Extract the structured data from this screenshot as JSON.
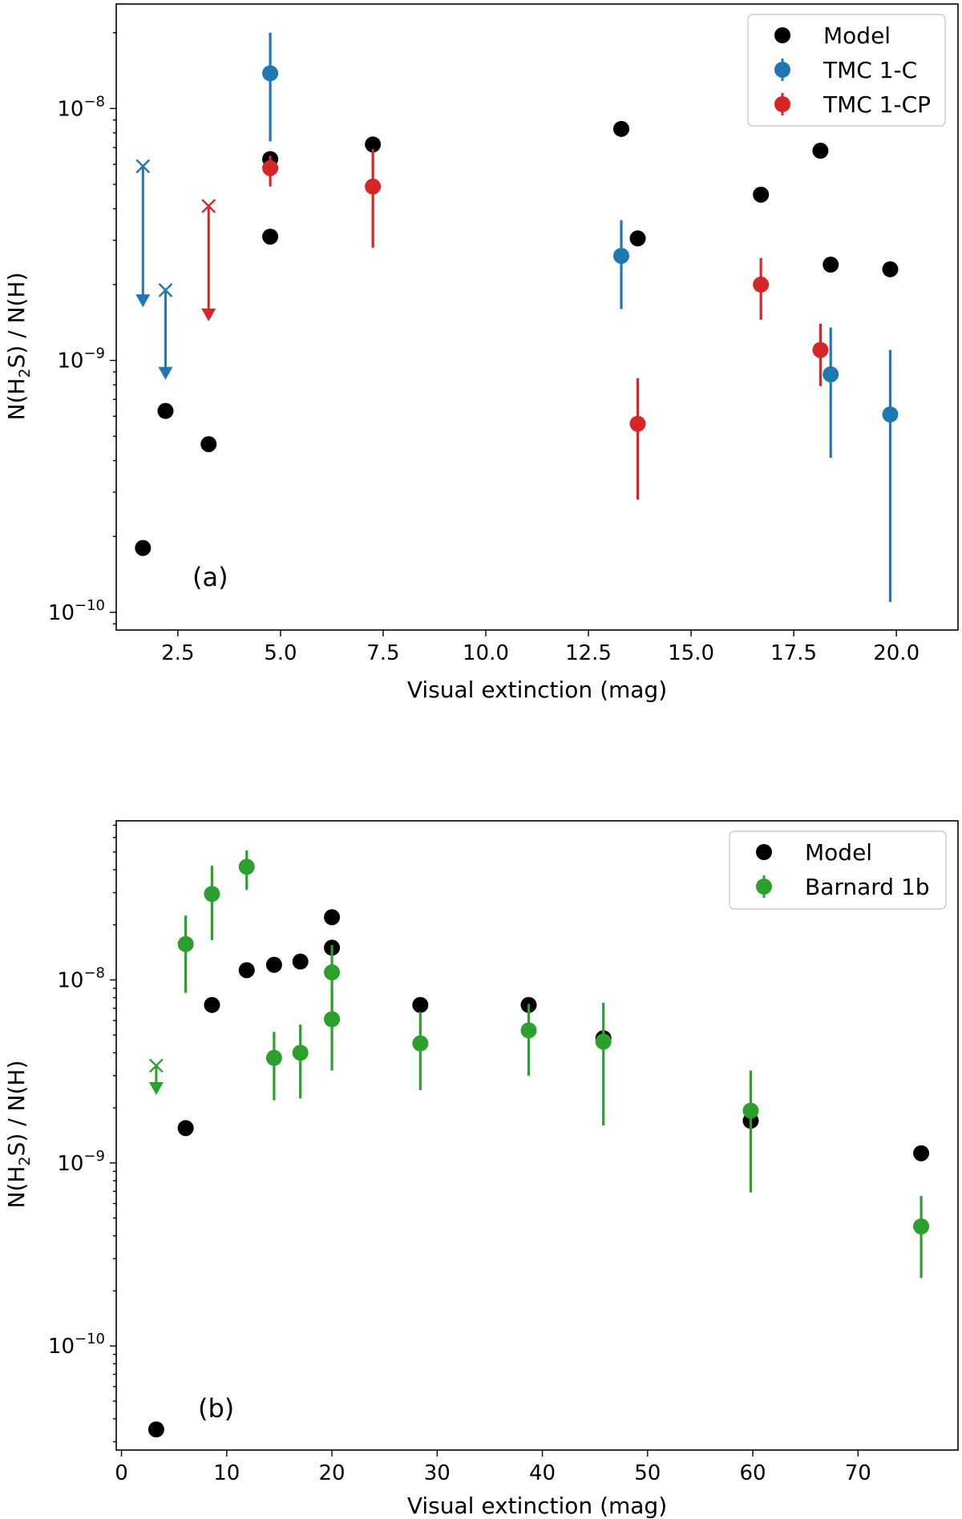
{
  "chart_data": [
    {
      "type": "scatter",
      "panel_label": "(a)",
      "xlabel": "Visual extinction (mag)",
      "ylabel": "N(H2S) / N(H)",
      "ylabel_parts": {
        "pre": "N(H",
        "sub": "2",
        "post": "S) / N(H)"
      },
      "yscale": "log",
      "xlim": [
        1.0,
        21.5
      ],
      "ylim": [
        8.5e-11,
        2.6e-08
      ],
      "xticks": [
        2.5,
        5.0,
        7.5,
        10.0,
        12.5,
        15.0,
        17.5,
        20.0
      ],
      "xtick_labels": [
        "2.5",
        "5.0",
        "7.5",
        "10.0",
        "12.5",
        "15.0",
        "17.5",
        "20.0"
      ],
      "yticks": [
        {
          "value": 1e-10,
          "base": "10",
          "exp": "−10"
        },
        {
          "value": 1e-09,
          "base": "10",
          "exp": "−9"
        },
        {
          "value": 1e-08,
          "base": "10",
          "exp": "−8"
        }
      ],
      "legend": {
        "location": "top-right",
        "entries": [
          {
            "label": "Model",
            "color": "#000000",
            "errorbar": false
          },
          {
            "label": "TMC 1-C",
            "color": "#1f77b4",
            "errorbar": true
          },
          {
            "label": "TMC 1-CP",
            "color": "#d62728",
            "errorbar": true
          }
        ]
      },
      "series": [
        {
          "name": "Model",
          "color": "#000000",
          "points": [
            {
              "x": 1.65,
              "y": 1.8e-10
            },
            {
              "x": 2.2,
              "y": 6.3e-10
            },
            {
              "x": 3.25,
              "y": 4.65e-10
            },
            {
              "x": 4.75,
              "y": 6.3e-09
            },
            {
              "x": 4.75,
              "y": 3.1e-09
            },
            {
              "x": 7.25,
              "y": 7.2e-09
            },
            {
              "x": 13.3,
              "y": 8.3e-09
            },
            {
              "x": 13.7,
              "y": 3.05e-09
            },
            {
              "x": 16.7,
              "y": 4.55e-09
            },
            {
              "x": 18.15,
              "y": 6.8e-09
            },
            {
              "x": 18.4,
              "y": 2.4e-09
            },
            {
              "x": 19.85,
              "y": 2.3e-09
            }
          ]
        },
        {
          "name": "TMC 1-C",
          "color": "#1f77b4",
          "points": [
            {
              "x": 4.75,
              "y": 1.38e-08,
              "lo": 7.4e-09,
              "hi": 2e-08
            },
            {
              "x": 13.3,
              "y": 2.6e-09,
              "lo": 1.6e-09,
              "hi": 3.6e-09
            },
            {
              "x": 18.4,
              "y": 8.8e-10,
              "lo": 4.1e-10,
              "hi": 1.35e-09
            },
            {
              "x": 19.85,
              "y": 6.1e-10,
              "lo": 1.1e-10,
              "hi": 1.1e-09
            }
          ],
          "upper_limits": [
            {
              "x": 1.65,
              "y": 5.9e-09,
              "to": 1.65e-09
            },
            {
              "x": 2.2,
              "y": 1.9e-09,
              "to": 8.5e-10
            }
          ]
        },
        {
          "name": "TMC 1-CP",
          "color": "#d62728",
          "points": [
            {
              "x": 4.75,
              "y": 5.8e-09,
              "lo": 4.9e-09,
              "hi": 6.5e-09
            },
            {
              "x": 7.25,
              "y": 4.9e-09,
              "lo": 2.8e-09,
              "hi": 6.9e-09
            },
            {
              "x": 13.7,
              "y": 5.6e-10,
              "lo": 2.8e-10,
              "hi": 8.5e-10
            },
            {
              "x": 16.7,
              "y": 2e-09,
              "lo": 1.45e-09,
              "hi": 2.55e-09
            },
            {
              "x": 18.15,
              "y": 1.1e-09,
              "lo": 7.9e-10,
              "hi": 1.4e-09
            }
          ],
          "upper_limits": [
            {
              "x": 3.25,
              "y": 4.1e-09,
              "to": 1.45e-09
            }
          ]
        }
      ]
    },
    {
      "type": "scatter",
      "panel_label": "(b)",
      "xlabel": "Visual extinction (mag)",
      "ylabel": "N(H2S) / N(H)",
      "ylabel_parts": {
        "pre": "N(H",
        "sub": "2",
        "post": "S) / N(H)"
      },
      "yscale": "log",
      "xlim": [
        -0.5,
        79.5
      ],
      "ylim": [
        2.7e-11,
        7.4e-08
      ],
      "xticks": [
        0,
        10,
        20,
        30,
        40,
        50,
        60,
        70
      ],
      "xtick_labels": [
        "0",
        "10",
        "20",
        "30",
        "40",
        "50",
        "60",
        "70"
      ],
      "yticks": [
        {
          "value": 1e-10,
          "base": "10",
          "exp": "−10"
        },
        {
          "value": 1e-09,
          "base": "10",
          "exp": "−9"
        },
        {
          "value": 1e-08,
          "base": "10",
          "exp": "−8"
        }
      ],
      "legend": {
        "location": "top-right",
        "entries": [
          {
            "label": "Model",
            "color": "#000000",
            "errorbar": false
          },
          {
            "label": "Barnard 1b",
            "color": "#2ca02c",
            "errorbar": true
          }
        ]
      },
      "series": [
        {
          "name": "Model",
          "color": "#000000",
          "points": [
            {
              "x": 3.3,
              "y": 3.5e-11
            },
            {
              "x": 6.1,
              "y": 1.55e-09
            },
            {
              "x": 8.6,
              "y": 7.3e-09
            },
            {
              "x": 11.9,
              "y": 1.13e-08
            },
            {
              "x": 14.5,
              "y": 1.21e-08
            },
            {
              "x": 17.0,
              "y": 1.26e-08
            },
            {
              "x": 20.0,
              "y": 1.5e-08
            },
            {
              "x": 20.0,
              "y": 2.2e-08
            },
            {
              "x": 28.4,
              "y": 7.3e-09
            },
            {
              "x": 38.7,
              "y": 7.3e-09
            },
            {
              "x": 45.8,
              "y": 4.8e-09
            },
            {
              "x": 59.8,
              "y": 1.7e-09
            },
            {
              "x": 76.0,
              "y": 1.13e-09
            }
          ]
        },
        {
          "name": "Barnard 1b",
          "color": "#2ca02c",
          "points": [
            {
              "x": 6.1,
              "y": 1.57e-08,
              "lo": 8.5e-09,
              "hi": 2.25e-08
            },
            {
              "x": 8.6,
              "y": 2.95e-08,
              "lo": 1.65e-08,
              "hi": 4.2e-08
            },
            {
              "x": 11.9,
              "y": 4.15e-08,
              "lo": 3.1e-08,
              "hi": 5.1e-08
            },
            {
              "x": 14.5,
              "y": 3.75e-09,
              "lo": 2.2e-09,
              "hi": 5.2e-09
            },
            {
              "x": 17.0,
              "y": 4e-09,
              "lo": 2.25e-09,
              "hi": 5.7e-09
            },
            {
              "x": 20.0,
              "y": 1.1e-08,
              "lo": 6.4e-09,
              "hi": 1.55e-08
            },
            {
              "x": 20.0,
              "y": 6.1e-09,
              "lo": 3.2e-09,
              "hi": 9e-09
            },
            {
              "x": 28.4,
              "y": 4.5e-09,
              "lo": 2.5e-09,
              "hi": 6.7e-09
            },
            {
              "x": 38.7,
              "y": 5.3e-09,
              "lo": 3e-09,
              "hi": 7.4e-09
            },
            {
              "x": 45.8,
              "y": 4.6e-09,
              "lo": 1.6e-09,
              "hi": 7.5e-09
            },
            {
              "x": 59.8,
              "y": 1.93e-09,
              "lo": 6.9e-10,
              "hi": 3.2e-09
            },
            {
              "x": 76.0,
              "y": 4.5e-10,
              "lo": 2.35e-10,
              "hi": 6.6e-10
            }
          ],
          "upper_limits": [
            {
              "x": 3.3,
              "y": 3.4e-09,
              "to": 2.4e-09
            }
          ]
        }
      ]
    }
  ]
}
